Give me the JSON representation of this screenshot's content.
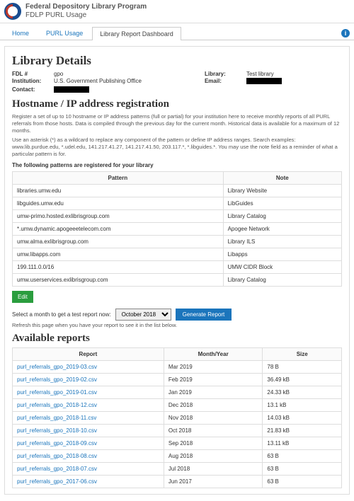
{
  "header": {
    "title": "Federal Depository Library Program",
    "subtitle": "FDLP PURL Usage"
  },
  "tabs": {
    "items": [
      {
        "label": "Home"
      },
      {
        "label": "PURL Usage"
      },
      {
        "label": "Library Report Dashboard"
      }
    ],
    "active_index": 2
  },
  "library_details": {
    "heading": "Library Details",
    "fdl_label": "FDL #",
    "fdl_value": "gpo",
    "institution_label": "Institution:",
    "institution_value": "U.S. Government Publishing Office",
    "contact_label": "Contact:",
    "contact_value": "█████████",
    "library_label": "Library:",
    "library_value": "Test library",
    "email_label": "Email:",
    "email_value": "█████████"
  },
  "hostname": {
    "heading": "Hostname / IP address registration",
    "blurb1": "Register a set of up to 10 hostname or IP address patterns (full or partial) for your institution here to receive monthly reports of all PURL referrals from those hosts. Data is compiled through the previous day for the current month. Historical data is available for a maximum of 12 months.",
    "blurb2": "Use an asterisk (*) as a wildcard to replace any component of the pattern or define IP address ranges. Search examples: www.lib.purdue.edu, *.udel.edu, 141.217.41.27, 141.217.41.50, 203.117.*, *.libguides.*. You may use the note field as a reminder of what a particular pattern is for.",
    "registered_label": "The following patterns are registered for your library",
    "columns": {
      "pattern": "Pattern",
      "note": "Note"
    },
    "rows": [
      {
        "pattern": "libraries.umw.edu",
        "note": "Library Website"
      },
      {
        "pattern": "libguides.umw.edu",
        "note": "LibGuides"
      },
      {
        "pattern": "umw-primo.hosted.exlibrisgroup.com",
        "note": "Library Catalog"
      },
      {
        "pattern": "*.umw.dynamic.apogeeetelecom.com",
        "note": "Apogee Network"
      },
      {
        "pattern": "umw.alma.exlibrisgroup.com",
        "note": "Library ILS"
      },
      {
        "pattern": "umw.libapps.com",
        "note": "Libapps"
      },
      {
        "pattern": "199.111.0.0/16",
        "note": "UMW CIDR Block"
      },
      {
        "pattern": "umw.userservices.exlibrisgroup.com",
        "note": "Library Catalog"
      }
    ]
  },
  "controls": {
    "edit_label": "Edit",
    "select_prompt": "Select a month to get a test report now:",
    "month_option": "October 2018",
    "generate_label": "Generate Report",
    "refresh_hint": "Refresh this page when you have your report to see it in the list below."
  },
  "reports": {
    "heading": "Available reports",
    "columns": {
      "report": "Report",
      "month": "Month/Year",
      "size": "Size"
    },
    "rows": [
      {
        "report": "purl_referrals_gpo_2019-03.csv",
        "month": "Mar 2019",
        "size": "78 B"
      },
      {
        "report": "purl_referrals_gpo_2019-02.csv",
        "month": "Feb 2019",
        "size": "36.49 kB"
      },
      {
        "report": "purl_referrals_gpo_2019-01.csv",
        "month": "Jan 2019",
        "size": "24.33 kB"
      },
      {
        "report": "purl_referrals_gpo_2018-12.csv",
        "month": "Dec 2018",
        "size": "13.1 kB"
      },
      {
        "report": "purl_referrals_gpo_2018-11.csv",
        "month": "Nov 2018",
        "size": "14.03 kB"
      },
      {
        "report": "purl_referrals_gpo_2018-10.csv",
        "month": "Oct 2018",
        "size": "21.83 kB"
      },
      {
        "report": "purl_referrals_gpo_2018-09.csv",
        "month": "Sep 2018",
        "size": "13.11 kB"
      },
      {
        "report": "purl_referrals_gpo_2018-08.csv",
        "month": "Aug 2018",
        "size": "63 B"
      },
      {
        "report": "purl_referrals_gpo_2018-07.csv",
        "month": "Jul 2018",
        "size": "63 B"
      },
      {
        "report": "purl_referrals_gpo_2017-06.csv",
        "month": "Jun 2017",
        "size": "63 B"
      }
    ]
  }
}
